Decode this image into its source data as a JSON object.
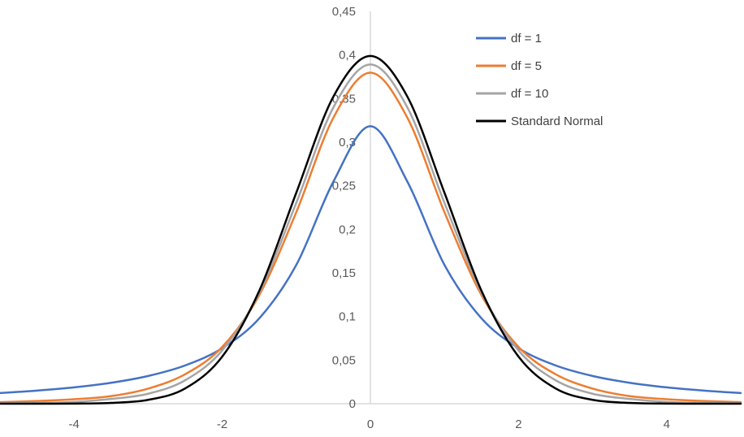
{
  "chart_data": {
    "type": "line",
    "xlim": [
      -5,
      5
    ],
    "ylim": [
      0,
      0.45
    ],
    "x_ticks": [
      "-4",
      "-2",
      "0",
      "2",
      "4"
    ],
    "x_tick_values": [
      -4,
      -2,
      0,
      2,
      4
    ],
    "y_ticks": [
      "0",
      "0,05",
      "0,1",
      "0,15",
      "0,2",
      "0,25",
      "0,3",
      "0,35",
      "0,4",
      "0,45"
    ],
    "y_tick_values": [
      0,
      0.05,
      0.1,
      0.15,
      0.2,
      0.25,
      0.3,
      0.35,
      0.4,
      0.45
    ],
    "grid": false,
    "legend_position": "top-right",
    "x": [
      -5,
      -4.5,
      -4,
      -3.5,
      -3,
      -2.5,
      -2,
      -1.5,
      -1,
      -0.5,
      0,
      0.5,
      1,
      1.5,
      2,
      2.5,
      3,
      3.5,
      4,
      4.5,
      5
    ],
    "series": [
      {
        "name": "df = 1",
        "color": "#4472c4",
        "values": [
          0.0122,
          0.015,
          0.0187,
          0.024,
          0.0318,
          0.0439,
          0.0637,
          0.0979,
          0.1592,
          0.2546,
          0.3183,
          0.2546,
          0.1592,
          0.0979,
          0.0637,
          0.0439,
          0.0318,
          0.024,
          0.0187,
          0.015,
          0.0122
        ]
      },
      {
        "name": "df = 5",
        "color": "#ed7d31",
        "values": [
          0.0018,
          0.0031,
          0.0051,
          0.0087,
          0.0173,
          0.0338,
          0.0651,
          0.1245,
          0.2197,
          0.3279,
          0.3796,
          0.3279,
          0.2197,
          0.1245,
          0.0651,
          0.0338,
          0.0173,
          0.0087,
          0.0051,
          0.0031,
          0.0018
        ]
      },
      {
        "name": "df = 10",
        "color": "#a5a5a5",
        "values": [
          0.0004,
          0.0009,
          0.002,
          0.0055,
          0.0114,
          0.0269,
          0.0611,
          0.1274,
          0.2304,
          0.3397,
          0.3891,
          0.3397,
          0.2304,
          0.1274,
          0.0611,
          0.0269,
          0.0114,
          0.0055,
          0.002,
          0.0009,
          0.0004
        ]
      },
      {
        "name": "Standard Normal",
        "color": "#000000",
        "values": [
          1.5e-06,
          1.6e-05,
          0.0001,
          0.0009,
          0.0044,
          0.0175,
          0.054,
          0.1295,
          0.242,
          0.3521,
          0.3989,
          0.3521,
          0.242,
          0.1295,
          0.054,
          0.0175,
          0.0044,
          0.0009,
          0.0001,
          1.6e-05,
          1.5e-06
        ]
      }
    ]
  }
}
